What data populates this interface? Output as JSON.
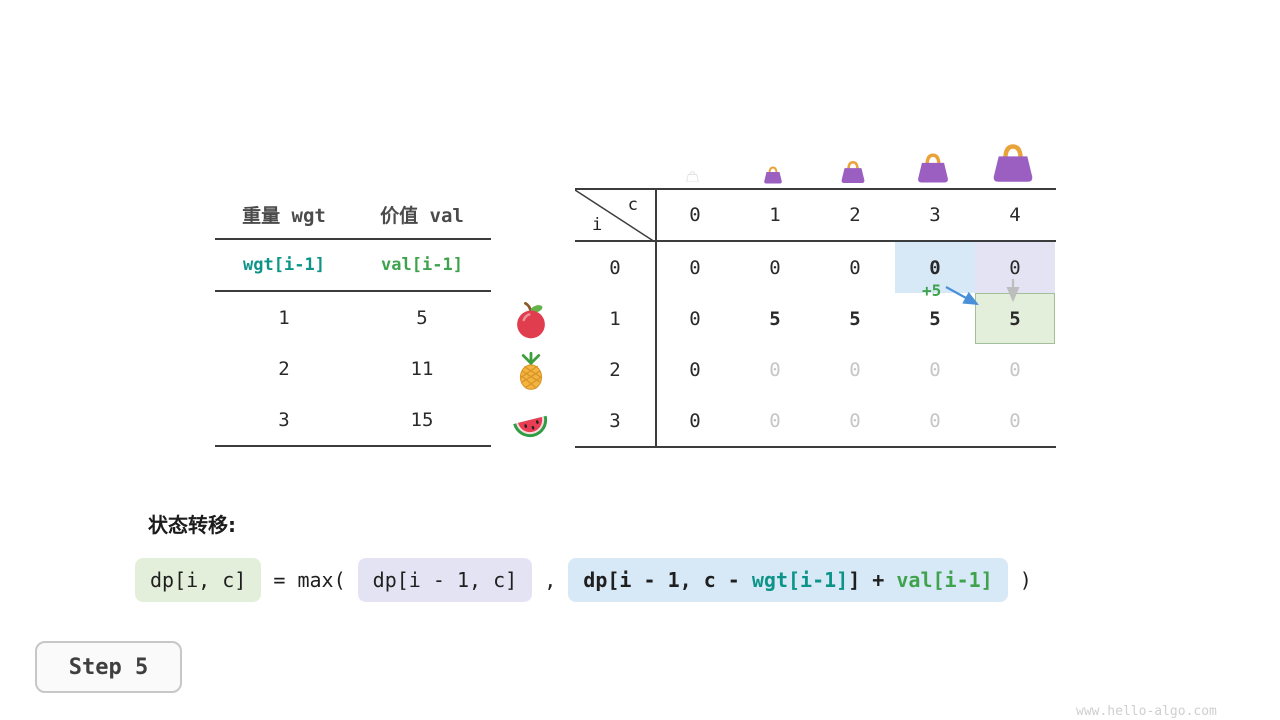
{
  "colors": {
    "wgt": "#0d9488",
    "val": "#3fa34d",
    "hl_blue": "#d7e8f6",
    "hl_purple": "#e4e3f4",
    "hl_green": "#e3efda",
    "hl_green_border": "#a2bf99",
    "dim": "#c6c6c6",
    "line": "#3c3c3c",
    "arrow_blue": "#4a90d9",
    "arrow_gray": "#bdbdbd"
  },
  "weights_table": {
    "col1_header": "重量 wgt",
    "col2_header": "价值 val",
    "var_row": {
      "wgt": "wgt[i-1]",
      "val": "val[i-1]"
    },
    "rows": [
      {
        "wgt": "1",
        "val": "5",
        "fruit": "apple"
      },
      {
        "wgt": "2",
        "val": "11",
        "fruit": "pineapple"
      },
      {
        "wgt": "3",
        "val": "15",
        "fruit": "watermelon"
      }
    ]
  },
  "dp_table": {
    "corner_top": "c",
    "corner_left": "i",
    "col_headers": [
      "0",
      "1",
      "2",
      "3",
      "4"
    ],
    "annotation": "+5",
    "bag_icons": [
      "bag-capacity-0",
      "bag-capacity-1",
      "bag-capacity-2",
      "bag-capacity-3",
      "bag-capacity-4"
    ],
    "rows": [
      {
        "i": "0",
        "cells": [
          {
            "v": "0"
          },
          {
            "v": "0"
          },
          {
            "v": "0"
          },
          {
            "v": "0",
            "cls": "bold hl-blue"
          },
          {
            "v": "0",
            "cls": "hl-purple"
          }
        ]
      },
      {
        "i": "1",
        "cells": [
          {
            "v": "0"
          },
          {
            "v": "5",
            "cls": "bold"
          },
          {
            "v": "5",
            "cls": "bold"
          },
          {
            "v": "5",
            "cls": "bold"
          },
          {
            "v": "5",
            "cls": "hl-green"
          }
        ]
      },
      {
        "i": "2",
        "cells": [
          {
            "v": "0"
          },
          {
            "v": "0",
            "cls": "dim"
          },
          {
            "v": "0",
            "cls": "dim"
          },
          {
            "v": "0",
            "cls": "dim"
          },
          {
            "v": "0",
            "cls": "dim"
          }
        ]
      },
      {
        "i": "3",
        "cells": [
          {
            "v": "0"
          },
          {
            "v": "0",
            "cls": "dim"
          },
          {
            "v": "0",
            "cls": "dim"
          },
          {
            "v": "0",
            "cls": "dim"
          },
          {
            "v": "0",
            "cls": "dim"
          }
        ]
      }
    ]
  },
  "transition": {
    "label": "状态转移:",
    "parts": [
      {
        "type": "box",
        "style": "green",
        "text": "dp[i, c]"
      },
      {
        "type": "text",
        "text": " = max( "
      },
      {
        "type": "box",
        "style": "purple",
        "text": "dp[i - 1, c]"
      },
      {
        "type": "text",
        "text": " , "
      },
      {
        "type": "box",
        "style": "blue",
        "bold": true,
        "segments": [
          {
            "text": "dp[i - 1, c - "
          },
          {
            "text": "wgt[i-1]",
            "color": "wgt"
          },
          {
            "text": "] + "
          },
          {
            "text": "val[i-1]",
            "color": "val"
          }
        ]
      },
      {
        "type": "text",
        "text": " )"
      }
    ]
  },
  "step": {
    "label": "Step 5"
  },
  "watermark": "www.hello-algo.com"
}
